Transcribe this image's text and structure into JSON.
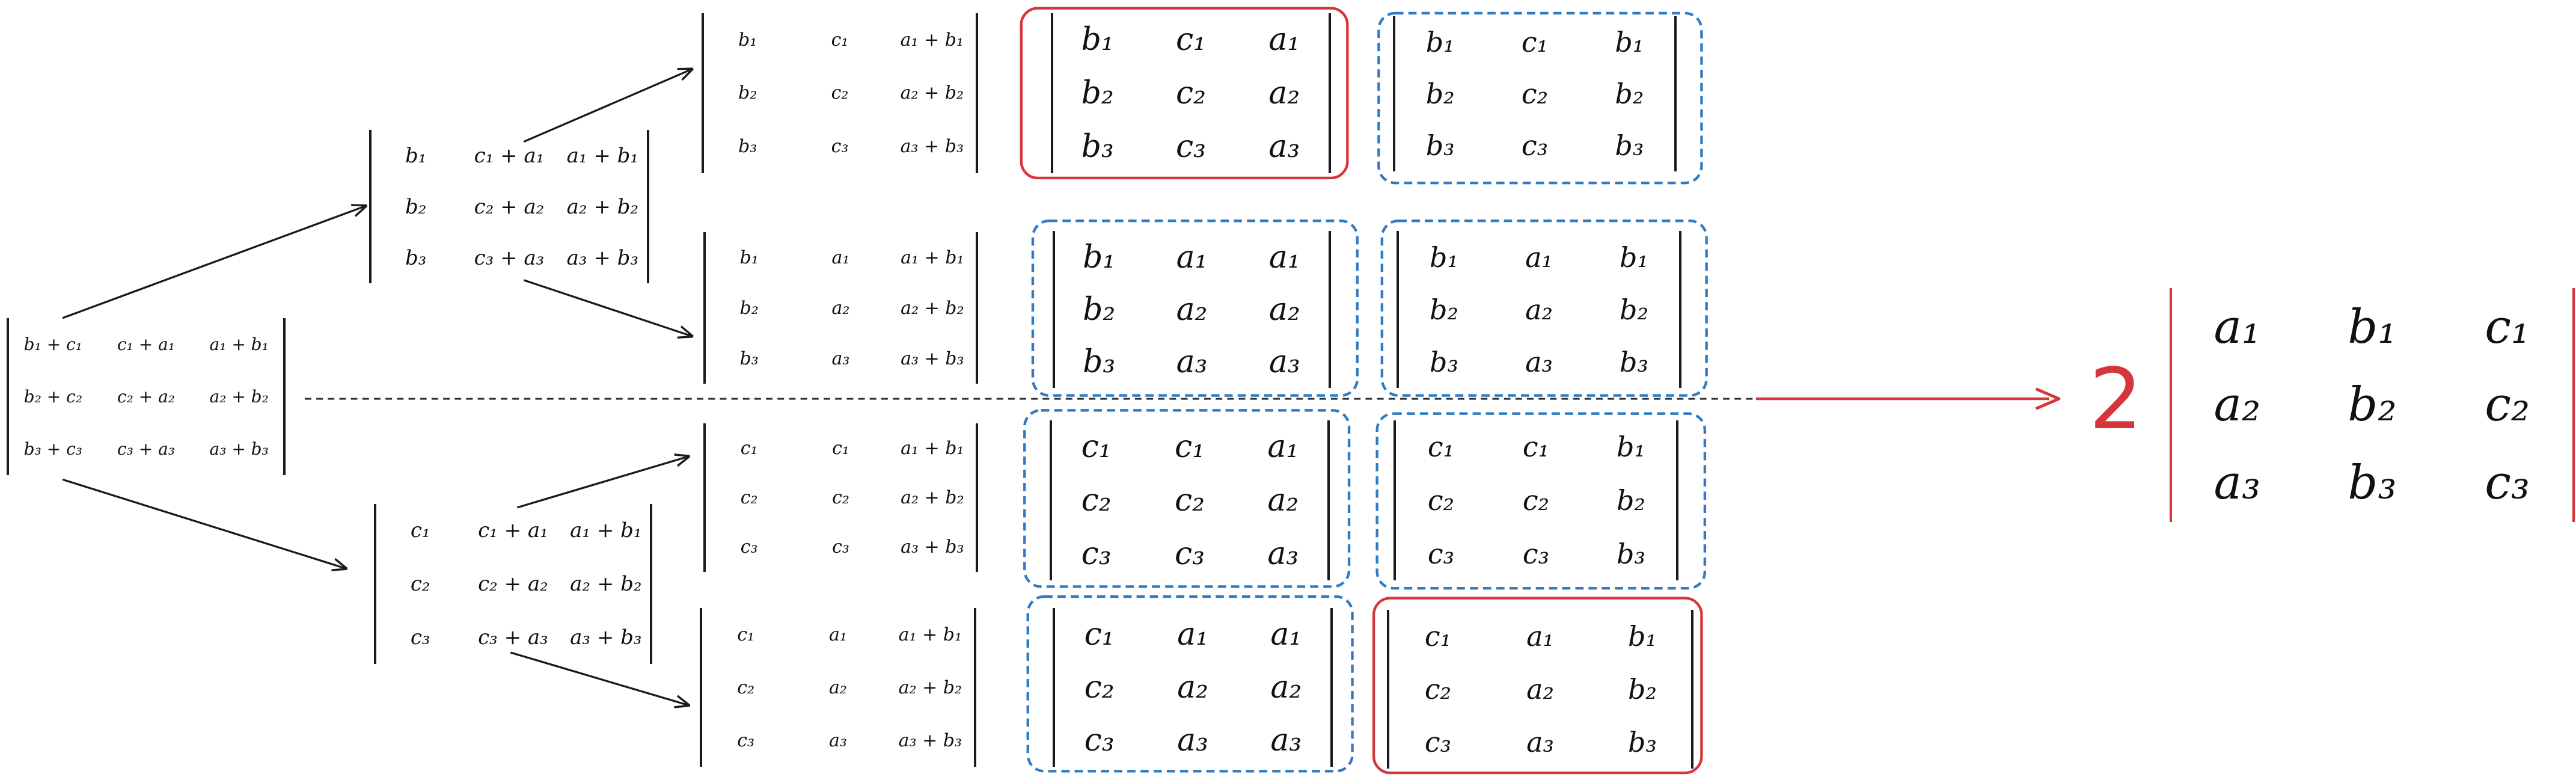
{
  "determinants": {
    "source": [
      [
        "b₁ + c₁",
        "c₁ + a₁",
        "a₁ + b₁"
      ],
      [
        "b₂ + c₂",
        "c₂ + a₂",
        "a₂ + b₂"
      ],
      [
        "b₃ + c₃",
        "c₃ + a₃",
        "a₃ + b₃"
      ]
    ],
    "split_b": [
      [
        "b₁",
        "c₁ + a₁",
        "a₁ + b₁"
      ],
      [
        "b₂",
        "c₂ + a₂",
        "a₂ + b₂"
      ],
      [
        "b₃",
        "c₃ + a₃",
        "a₃ + b₃"
      ]
    ],
    "split_c": [
      [
        "c₁",
        "c₁ + a₁",
        "a₁ + b₁"
      ],
      [
        "c₂",
        "c₂ + a₂",
        "a₂ + b₂"
      ],
      [
        "c₃",
        "c₃ + a₃",
        "a₃ + b₃"
      ]
    ],
    "bc": [
      [
        "b₁",
        "c₁",
        "a₁ + b₁"
      ],
      [
        "b₂",
        "c₂",
        "a₂ + b₂"
      ],
      [
        "b₃",
        "c₃",
        "a₃ + b₃"
      ]
    ],
    "ba": [
      [
        "b₁",
        "a₁",
        "a₁ + b₁"
      ],
      [
        "b₂",
        "a₂",
        "a₂ + b₂"
      ],
      [
        "b₃",
        "a₃",
        "a₃ + b₃"
      ]
    ],
    "cc": [
      [
        "c₁",
        "c₁",
        "a₁ + b₁"
      ],
      [
        "c₂",
        "c₂",
        "a₂ + b₂"
      ],
      [
        "c₃",
        "c₃",
        "a₃ + b₃"
      ]
    ],
    "ca": [
      [
        "c₁",
        "a₁",
        "a₁ + b₁"
      ],
      [
        "c₂",
        "a₂",
        "a₂ + b₂"
      ],
      [
        "c₃",
        "a₃",
        "a₃ + b₃"
      ]
    ],
    "bca": [
      [
        "b₁",
        "c₁",
        "a₁"
      ],
      [
        "b₂",
        "c₂",
        "a₂"
      ],
      [
        "b₃",
        "c₃",
        "a₃"
      ]
    ],
    "bcb": [
      [
        "b₁",
        "c₁",
        "b₁"
      ],
      [
        "b₂",
        "c₂",
        "b₂"
      ],
      [
        "b₃",
        "c₃",
        "b₃"
      ]
    ],
    "baa": [
      [
        "b₁",
        "a₁",
        "a₁"
      ],
      [
        "b₂",
        "a₂",
        "a₂"
      ],
      [
        "b₃",
        "a₃",
        "a₃"
      ]
    ],
    "bab": [
      [
        "b₁",
        "a₁",
        "b₁"
      ],
      [
        "b₂",
        "a₂",
        "b₂"
      ],
      [
        "b₃",
        "a₃",
        "b₃"
      ]
    ],
    "cca": [
      [
        "c₁",
        "c₁",
        "a₁"
      ],
      [
        "c₂",
        "c₂",
        "a₂"
      ],
      [
        "c₃",
        "c₃",
        "a₃"
      ]
    ],
    "ccb": [
      [
        "c₁",
        "c₁",
        "b₁"
      ],
      [
        "c₂",
        "c₂",
        "b₂"
      ],
      [
        "c₃",
        "c₃",
        "b₃"
      ]
    ],
    "caa": [
      [
        "c₁",
        "a₁",
        "a₁"
      ],
      [
        "c₂",
        "a₂",
        "a₂"
      ],
      [
        "c₃",
        "a₃",
        "a₃"
      ]
    ],
    "cab": [
      [
        "c₁",
        "a₁",
        "b₁"
      ],
      [
        "c₂",
        "a₂",
        "b₂"
      ],
      [
        "c₃",
        "a₃",
        "b₃"
      ]
    ],
    "result": [
      [
        "a₁",
        "b₁",
        "c₁"
      ],
      [
        "a₂",
        "b₂",
        "c₂"
      ],
      [
        "a₃",
        "b₃",
        "c₃"
      ]
    ]
  },
  "result_coefficient": "2",
  "colors": {
    "ink": "#1a1a1a",
    "highlight_red": "#d6363b",
    "dashed_blue": "#2f7cc4"
  },
  "icons": [
    "arrow-right-icon"
  ]
}
